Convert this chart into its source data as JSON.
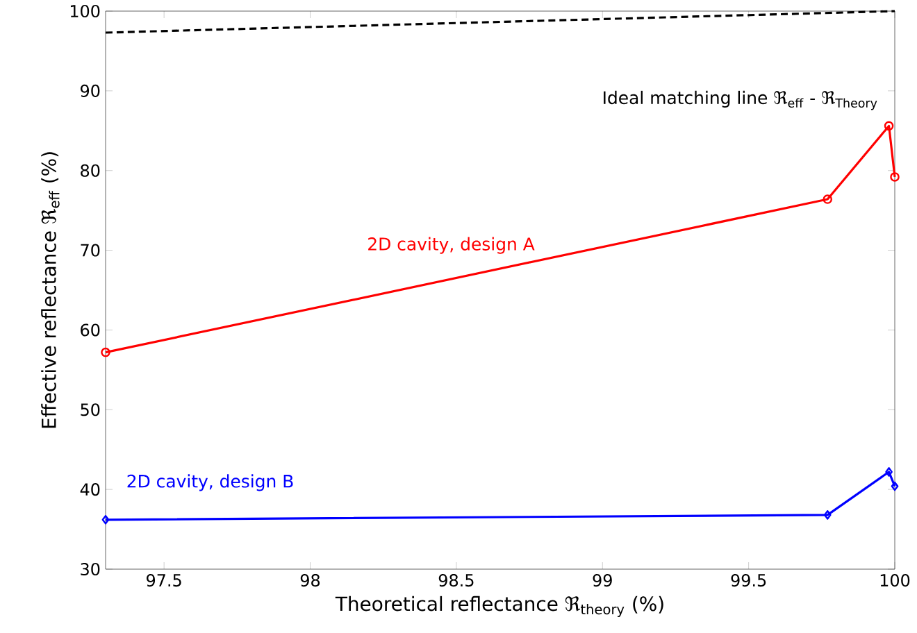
{
  "chart_data": {
    "type": "line",
    "xlabel": "Theoretical reflectance ℜ$_{theory}$ (%)",
    "ylabel": "Effective reflectance  ℜ$_{eff}$ (%)",
    "xlim": [
      97.3,
      100
    ],
    "ylim": [
      30,
      100
    ],
    "xticks": [
      97.5,
      98,
      98.5,
      99,
      99.5,
      100
    ],
    "yticks": [
      30,
      40,
      50,
      60,
      70,
      80,
      90,
      100
    ],
    "grid": false,
    "legend": false,
    "series": [
      {
        "name": "Ideal matching line ℜ$_{eff}$ - ℜ$_{Theory}$",
        "color": "#000000",
        "x": [
          97.3,
          100
        ],
        "values": [
          97.3,
          100
        ],
        "marker": "none",
        "line_style": "dashed"
      },
      {
        "name": "2D cavity, design A",
        "color": "#ff0000",
        "x": [
          97.3,
          99.77,
          99.98,
          100
        ],
        "values": [
          57.2,
          76.4,
          85.6,
          79.2
        ],
        "marker": "circle",
        "line_style": "solid"
      },
      {
        "name": "2D cavity, design B",
        "color": "#0000ff",
        "x": [
          97.3,
          99.77,
          99.98,
          100
        ],
        "values": [
          36.2,
          36.8,
          42.2,
          40.4
        ],
        "marker": "diamond",
        "line_style": "solid"
      }
    ]
  }
}
